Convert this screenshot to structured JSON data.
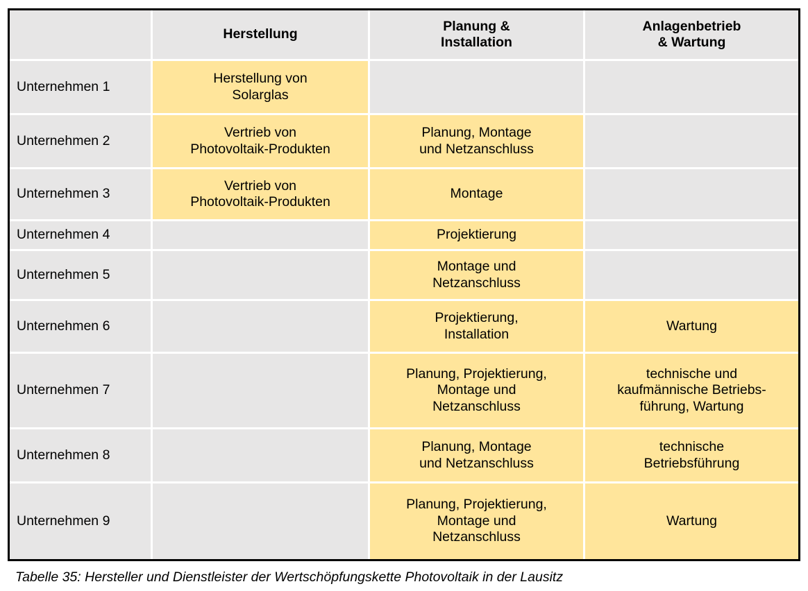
{
  "table": {
    "column_headers": [
      "",
      "Herstellung",
      "Planung &\nInstallation",
      "Anlagenbetrieb\n& Wartung"
    ],
    "rows": [
      {
        "label": "Unternehmen 1",
        "herstellung": "Herstellung von\nSolarglas",
        "planung": "",
        "anlagenbetrieb": ""
      },
      {
        "label": "Unternehmen 2",
        "herstellung": "Vertrieb von\nPhotovoltaik-Produkten",
        "planung": "Planung, Montage\nund Netzanschluss",
        "anlagenbetrieb": ""
      },
      {
        "label": "Unternehmen 3",
        "herstellung": "Vertrieb von\nPhotovoltaik-Produkten",
        "planung": "Montage",
        "anlagenbetrieb": ""
      },
      {
        "label": "Unternehmen 4",
        "herstellung": "",
        "planung": "Projektierung",
        "anlagenbetrieb": ""
      },
      {
        "label": "Unternehmen 5",
        "herstellung": "",
        "planung": "Montage und\nNetzanschluss",
        "anlagenbetrieb": ""
      },
      {
        "label": "Unternehmen 6",
        "herstellung": "",
        "planung": "Projektierung,\nInstallation",
        "anlagenbetrieb": "Wartung"
      },
      {
        "label": "Unternehmen 7",
        "herstellung": "",
        "planung": "Planung, Projektierung,\nMontage und\nNetzanschluss",
        "anlagenbetrieb": "technische und\nkaufmännische Betriebs-\nführung, Wartung"
      },
      {
        "label": "Unternehmen 8",
        "herstellung": "",
        "planung": "Planung, Montage\nund Netzanschluss",
        "anlagenbetrieb": "technische\nBetriebsführung"
      },
      {
        "label": "Unternehmen 9",
        "herstellung": "",
        "planung": "Planung, Projektierung,\nMontage und\nNetzanschluss",
        "anlagenbetrieb": "Wartung"
      }
    ]
  },
  "caption": "Tabelle 35: Hersteller und Dienstleister der Wertschöpfungskette Photovoltaik in der Lausitz",
  "colors": {
    "filled_cell": "#ffe59b",
    "empty_cell": "#e7e6e6",
    "grid_gap": "#ffffff",
    "border": "#000000",
    "text": "#000000"
  }
}
